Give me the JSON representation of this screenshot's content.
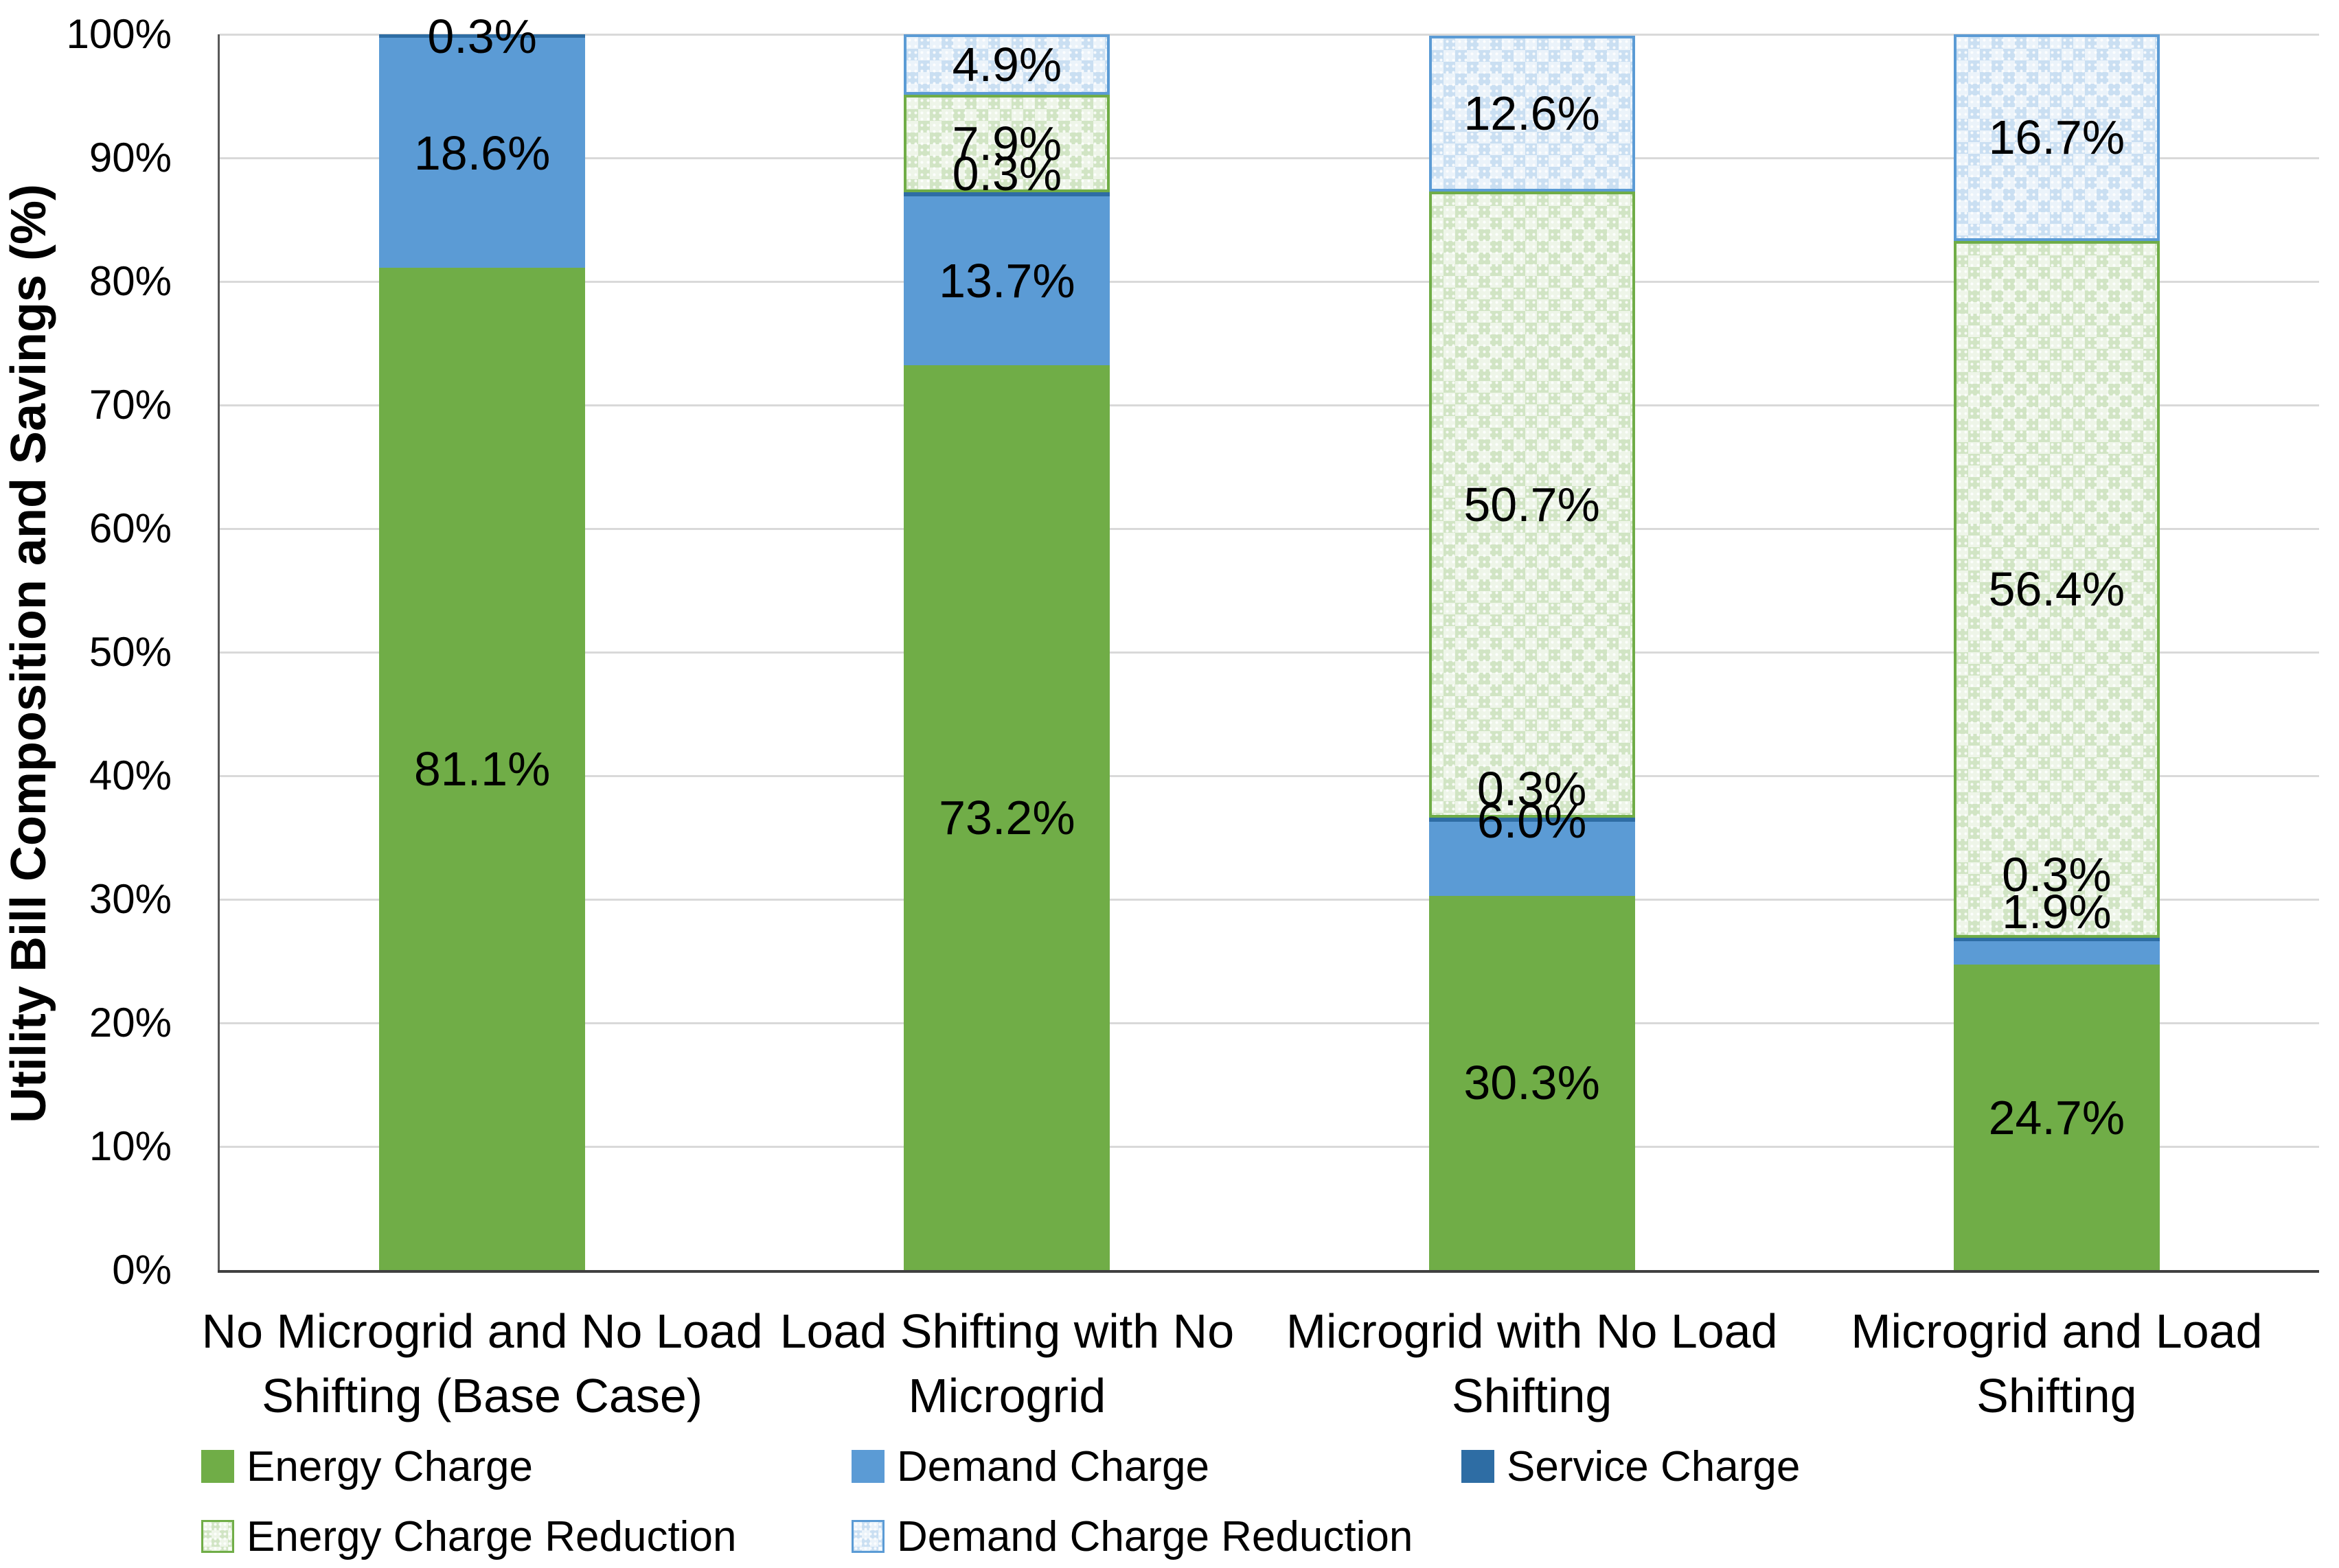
{
  "chart_data": {
    "type": "bar",
    "stacked": true,
    "orientation": "vertical",
    "title": "",
    "xlabel": "",
    "ylabel": "Utility Bill Composition and Savings (%)",
    "ylim": [
      0,
      100
    ],
    "ytick_step": 10,
    "ytick_labels": [
      "0%",
      "10%",
      "20%",
      "30%",
      "40%",
      "50%",
      "60%",
      "70%",
      "80%",
      "90%",
      "100%"
    ],
    "grid": true,
    "gridline_color": "#d9d9d9",
    "axis_line_color": "#404040",
    "background_color": "#ffffff",
    "legend_position": "bottom",
    "categories": [
      "No Microgrid and No Load Shifting (Base Case)",
      "Load Shifting with No Microgrid",
      "Microgrid with No Load Shifting",
      "Microgrid and Load Shifting"
    ],
    "category_label_lines": [
      [
        "No Microgrid and No Load",
        "Shifting (Base Case)"
      ],
      [
        "Load Shifting with No",
        "Microgrid"
      ],
      [
        "Microgrid with No Load",
        "Shifting"
      ],
      [
        "Microgrid and Load",
        "Shifting"
      ]
    ],
    "series": [
      {
        "name": "Energy Charge",
        "fill": "solid",
        "color": "#70AD47",
        "values": [
          81.1,
          73.2,
          30.3,
          24.7
        ],
        "labels": [
          "81.1%",
          "73.2%",
          "30.3%",
          "24.7%"
        ]
      },
      {
        "name": "Demand Charge",
        "fill": "solid",
        "color": "#5B9BD5",
        "values": [
          18.6,
          13.7,
          6.0,
          1.9
        ],
        "labels": [
          "18.6%",
          "13.7%",
          "6.0%",
          "1.9%"
        ]
      },
      {
        "name": "Service Charge",
        "fill": "solid",
        "color": "#2E6DA4",
        "values": [
          0.3,
          0.3,
          0.3,
          0.3
        ],
        "labels": [
          "0.3%",
          "0.3%",
          "0.3%",
          "0.3%"
        ]
      },
      {
        "name": "Energy Charge Reduction",
        "fill": "pattern",
        "color": "#70AD47",
        "values": [
          0,
          7.9,
          50.7,
          56.4
        ],
        "labels": [
          "",
          "7.9%",
          "50.7%",
          "56.4%"
        ]
      },
      {
        "name": "Demand Charge Reduction",
        "fill": "pattern",
        "color": "#5B9BD5",
        "values": [
          0,
          4.9,
          12.6,
          16.7
        ],
        "labels": [
          "",
          "4.9%",
          "12.6%",
          "16.7%"
        ]
      }
    ],
    "legend": [
      {
        "label": "Energy Charge",
        "fill": "solid",
        "color": "#70AD47"
      },
      {
        "label": "Demand Charge",
        "fill": "solid",
        "color": "#5B9BD5"
      },
      {
        "label": "Service Charge",
        "fill": "solid",
        "color": "#2E6DA4"
      },
      {
        "label": "Energy Charge Reduction",
        "fill": "pattern",
        "color": "#70AD47"
      },
      {
        "label": "Demand Charge Reduction",
        "fill": "pattern",
        "color": "#5B9BD5"
      }
    ]
  }
}
